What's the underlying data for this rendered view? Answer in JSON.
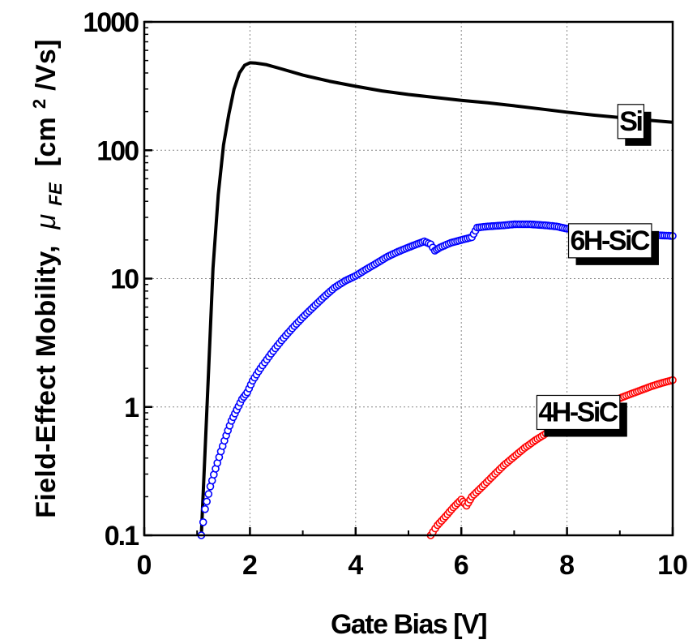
{
  "chart_data": {
    "type": "line",
    "xlabel": "Gate Bias [V]",
    "ylabel": {
      "prefix": "Field-Effect Mobility,",
      "symbol": "μ",
      "subscript": "FE",
      "unit_open": "[cm",
      "unit_exp": "2",
      "unit_close": "/Vs]"
    },
    "xlim": [
      0,
      10
    ],
    "ylim": [
      0.1,
      1000
    ],
    "yscale": "log",
    "grid": true,
    "x_ticks": [
      "0",
      "2",
      "4",
      "6",
      "8",
      "10"
    ],
    "y_ticks": [
      {
        "value": 0.1,
        "label": "0.1"
      },
      {
        "value": 1,
        "label": "1"
      },
      {
        "value": 10,
        "label": "10"
      },
      {
        "value": 100,
        "label": "100"
      },
      {
        "value": 1000,
        "label": "1000"
      }
    ],
    "series": [
      {
        "name": "Si",
        "style": "line",
        "color": "#000000",
        "x": [
          1.08,
          1.15,
          1.22,
          1.3,
          1.4,
          1.5,
          1.6,
          1.7,
          1.8,
          1.9,
          2.0,
          2.1,
          2.3,
          2.6,
          3.0,
          3.5,
          4.0,
          4.5,
          5.0,
          5.5,
          6.0,
          6.5,
          7.0,
          7.5,
          8.0,
          8.5,
          9.0,
          9.5,
          10.0
        ],
        "y": [
          0.1,
          0.45,
          2.0,
          12,
          45,
          110,
          190,
          300,
          400,
          460,
          480,
          478,
          465,
          430,
          385,
          345,
          315,
          290,
          272,
          258,
          245,
          234,
          222,
          210,
          198,
          188,
          180,
          172,
          165
        ]
      },
      {
        "name": "6H-SiC",
        "style": "markers",
        "color": "#0000ff",
        "x": [
          1.08,
          1.15,
          1.25,
          1.35,
          1.45,
          1.55,
          1.65,
          1.75,
          1.85,
          1.95,
          2.05,
          2.2,
          2.4,
          2.6,
          2.8,
          3.0,
          3.2,
          3.4,
          3.6,
          3.8,
          4.0,
          4.2,
          4.4,
          4.6,
          4.8,
          5.0,
          5.15,
          5.3,
          5.42,
          5.5,
          5.6,
          5.8,
          6.0,
          6.2,
          6.3,
          6.5,
          6.8,
          7.0,
          7.3,
          7.6,
          7.8,
          8.0,
          8.5,
          9.0,
          9.5,
          10.0
        ],
        "y": [
          0.1,
          0.16,
          0.24,
          0.33,
          0.45,
          0.6,
          0.78,
          0.95,
          1.15,
          1.3,
          1.6,
          2.0,
          2.6,
          3.3,
          4.1,
          5.0,
          6.0,
          7.2,
          8.5,
          9.6,
          10.5,
          11.8,
          13.2,
          14.8,
          16.2,
          17.5,
          18.5,
          19.5,
          18.5,
          16.5,
          17.5,
          19.0,
          20.0,
          21.0,
          25.0,
          25.5,
          26.0,
          26.5,
          26.5,
          26.0,
          25.5,
          24.5,
          23.5,
          22.5,
          22.0,
          21.5
        ]
      },
      {
        "name": "4H-SiC",
        "style": "markers",
        "color": "#ff0000",
        "x": [
          5.42,
          5.55,
          5.7,
          5.85,
          6.0,
          6.1,
          6.2,
          6.4,
          6.6,
          6.8,
          7.0,
          7.2,
          7.4,
          7.6,
          7.8,
          8.0,
          8.2,
          8.4,
          8.6,
          8.8,
          9.0,
          9.2,
          9.4,
          9.6,
          9.8,
          10.0
        ],
        "y": [
          0.1,
          0.12,
          0.14,
          0.165,
          0.19,
          0.17,
          0.2,
          0.24,
          0.29,
          0.35,
          0.41,
          0.48,
          0.55,
          0.62,
          0.69,
          0.76,
          0.84,
          0.92,
          1.0,
          1.08,
          1.17,
          1.26,
          1.35,
          1.45,
          1.54,
          1.62
        ]
      }
    ],
    "annotations": [
      {
        "text": "Si",
        "series": "Si",
        "x": 9.2,
        "y": 170
      },
      {
        "text": "6H-SiC",
        "series": "6H-SiC",
        "x": 8.8,
        "y": 20
      },
      {
        "text": "4H-SiC",
        "series": "4H-SiC",
        "x": 8.2,
        "y": 0.92
      }
    ]
  }
}
